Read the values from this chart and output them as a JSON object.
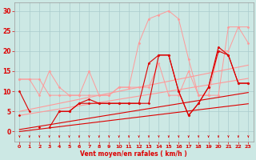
{
  "x": [
    0,
    1,
    2,
    3,
    4,
    5,
    6,
    7,
    8,
    9,
    10,
    11,
    12,
    13,
    14,
    15,
    16,
    17,
    18,
    19,
    20,
    21,
    22,
    23
  ],
  "series": [
    {
      "name": "light_high",
      "color": "#ff9999",
      "lw": 0.7,
      "marker": "D",
      "ms": 1.5,
      "y": [
        13,
        13,
        13,
        9,
        9,
        9,
        9,
        15,
        9,
        9,
        11,
        11,
        22,
        28,
        29,
        30,
        28,
        18,
        9,
        9,
        9,
        26,
        26,
        22
      ]
    },
    {
      "name": "light_mid",
      "color": "#ff9999",
      "lw": 0.7,
      "marker": "D",
      "ms": 1.5,
      "y": [
        13,
        13,
        9,
        15,
        11,
        9,
        9,
        9,
        9,
        9,
        11,
        11,
        11,
        11,
        17,
        9,
        9,
        15,
        9,
        9,
        20,
        20,
        26,
        26
      ]
    },
    {
      "name": "light_trend1",
      "color": "#ff9999",
      "lw": 0.8,
      "marker": null,
      "ms": 0,
      "y": [
        5.0,
        5.5,
        6.0,
        6.5,
        7.0,
        7.5,
        8.0,
        8.5,
        9.0,
        9.5,
        10.0,
        10.5,
        11.0,
        11.5,
        12.0,
        12.5,
        13.0,
        13.5,
        14.0,
        14.5,
        15.0,
        15.5,
        16.0,
        16.5
      ]
    },
    {
      "name": "light_trend2",
      "color": "#ff9999",
      "lw": 0.8,
      "marker": null,
      "ms": 0,
      "y": [
        4.0,
        4.4,
        4.8,
        5.2,
        5.6,
        6.0,
        6.4,
        6.8,
        7.2,
        7.6,
        8.0,
        8.4,
        8.8,
        9.2,
        9.6,
        10.0,
        10.4,
        10.8,
        11.2,
        11.6,
        12.0,
        12.4,
        12.8,
        13.2
      ]
    },
    {
      "name": "dark_main1",
      "color": "#dd0000",
      "lw": 0.8,
      "marker": "D",
      "ms": 1.5,
      "y": [
        10,
        5,
        null,
        1,
        5,
        5,
        7,
        8,
        7,
        7,
        7,
        7,
        7,
        7,
        19,
        19,
        10,
        4,
        7,
        11,
        21,
        19,
        12,
        12
      ]
    },
    {
      "name": "dark_main2",
      "color": "#dd0000",
      "lw": 0.8,
      "marker": "D",
      "ms": 1.5,
      "y": [
        4,
        null,
        1,
        null,
        5,
        5,
        7,
        7,
        7,
        7,
        7,
        7,
        7,
        17,
        19,
        19,
        10,
        4,
        7,
        11,
        20,
        19,
        12,
        12
      ]
    },
    {
      "name": "dark_trend1",
      "color": "#dd0000",
      "lw": 0.8,
      "marker": null,
      "ms": 0,
      "y": [
        0.5,
        0.9,
        1.3,
        1.7,
        2.1,
        2.5,
        2.9,
        3.3,
        3.7,
        4.1,
        4.5,
        4.9,
        5.3,
        5.7,
        6.1,
        6.5,
        6.9,
        7.3,
        7.7,
        8.1,
        8.5,
        8.9,
        9.3,
        9.7
      ]
    },
    {
      "name": "dark_trend2",
      "color": "#dd0000",
      "lw": 0.8,
      "marker": null,
      "ms": 0,
      "y": [
        0.0,
        0.3,
        0.6,
        0.9,
        1.2,
        1.5,
        1.8,
        2.1,
        2.4,
        2.7,
        3.0,
        3.3,
        3.6,
        3.9,
        4.2,
        4.5,
        4.8,
        5.1,
        5.4,
        5.7,
        6.0,
        6.3,
        6.6,
        6.9
      ]
    }
  ],
  "arrows": {
    "y_base": -0.8,
    "y_tip": -1.5,
    "color": "#dd0000"
  },
  "xlabel": "Vent moyen/en rafales ( km/h )",
  "xlim": [
    -0.5,
    23.5
  ],
  "ylim": [
    -2.5,
    32
  ],
  "yticks": [
    0,
    5,
    10,
    15,
    20,
    25,
    30
  ],
  "xticks": [
    0,
    1,
    2,
    3,
    4,
    5,
    6,
    7,
    8,
    9,
    10,
    11,
    12,
    13,
    14,
    15,
    16,
    17,
    18,
    19,
    20,
    21,
    22,
    23
  ],
  "bg_color": "#cce8e4",
  "grid_color": "#aacccc",
  "tick_color": "#dd0000",
  "label_color": "#dd0000"
}
